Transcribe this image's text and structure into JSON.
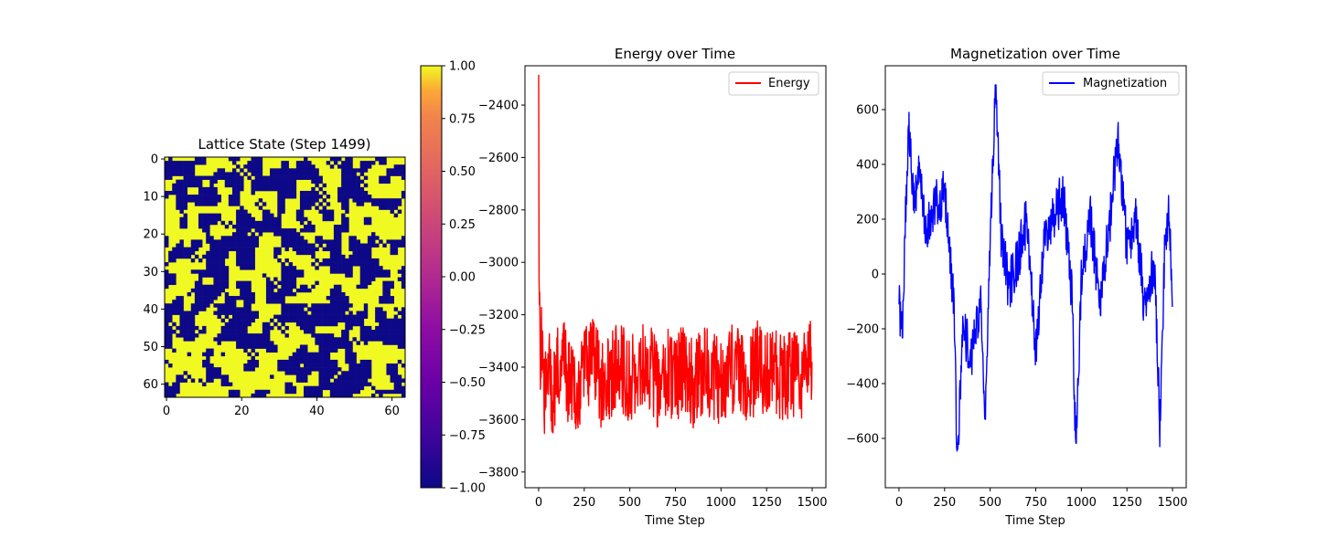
{
  "chart_data": [
    {
      "type": "heatmap",
      "title": "Lattice State (Step 1499)",
      "grid_size": 64,
      "seed": 1499,
      "xlim": [
        -0.5,
        63.5
      ],
      "ylim": [
        63.5,
        -0.5
      ],
      "xticks": [
        0,
        20,
        40,
        60
      ],
      "yticks": [
        0,
        10,
        20,
        30,
        40,
        50,
        60
      ],
      "values_domain": [
        -1,
        1
      ],
      "low_color": "#0d0887",
      "high_color": "#f0f921",
      "colorbar": {
        "colormap": "plasma",
        "ticks": [
          -1.0,
          -0.75,
          -0.5,
          -0.25,
          0.0,
          0.25,
          0.5,
          0.75,
          1.0
        ],
        "tick_labels": [
          "−1.00",
          "−0.75",
          "−0.50",
          "−0.25",
          "0.00",
          "0.25",
          "0.50",
          "0.75",
          "1.00"
        ]
      }
    },
    {
      "type": "line",
      "title": "Energy over Time",
      "xlabel": "Time Step",
      "ylabel": "",
      "xlim": [
        -75,
        1575
      ],
      "ylim": [
        -3860,
        -2250
      ],
      "xticks": [
        0,
        250,
        500,
        750,
        1000,
        1250,
        1500
      ],
      "yticks": [
        -3800,
        -3600,
        -3400,
        -3200,
        -3000,
        -2800,
        -2600,
        -2400
      ],
      "ytick_labels": [
        "−3800",
        "−3600",
        "−3400",
        "−3200",
        "−3000",
        "−2800",
        "−2600",
        "−2400"
      ],
      "legend_position": "upper right",
      "series": [
        {
          "name": "Energy",
          "color": "#ff0000",
          "x": [
            0,
            2,
            5,
            8,
            12,
            20,
            30,
            45,
            60,
            75,
            100,
            130,
            160,
            200,
            250,
            300,
            350,
            400,
            450,
            500,
            550,
            600,
            650,
            700,
            750,
            800,
            850,
            900,
            950,
            1000,
            1050,
            1100,
            1150,
            1200,
            1250,
            1300,
            1350,
            1400,
            1450,
            1499
          ],
          "values": [
            -2320,
            -3050,
            -3200,
            -3450,
            -3350,
            -3300,
            -3500,
            -3420,
            -3400,
            -3550,
            -3400,
            -3350,
            -3450,
            -3500,
            -3420,
            -3380,
            -3480,
            -3420,
            -3400,
            -3450,
            -3430,
            -3380,
            -3460,
            -3420,
            -3440,
            -3400,
            -3470,
            -3410,
            -3430,
            -3450,
            -3400,
            -3420,
            -3460,
            -3390,
            -3440,
            -3410,
            -3450,
            -3420,
            -3430,
            -3380
          ]
        }
      ]
    },
    {
      "type": "line",
      "title": "Magnetization over Time",
      "xlabel": "Time Step",
      "ylabel": "",
      "xlim": [
        -75,
        1575
      ],
      "ylim": [
        -780,
        760
      ],
      "xticks": [
        0,
        250,
        500,
        750,
        1000,
        1250,
        1500
      ],
      "yticks": [
        -600,
        -400,
        -200,
        0,
        200,
        400,
        600
      ],
      "ytick_labels": [
        "−600",
        "−400",
        "−200",
        "0",
        "200",
        "400",
        "600"
      ],
      "legend_position": "upper right",
      "series": [
        {
          "name": "Magnetization",
          "color": "#0000ff",
          "x": [
            0,
            20,
            40,
            55,
            80,
            110,
            150,
            200,
            250,
            300,
            320,
            350,
            400,
            450,
            470,
            500,
            530,
            560,
            600,
            650,
            700,
            750,
            800,
            850,
            900,
            950,
            970,
            1000,
            1050,
            1100,
            1150,
            1200,
            1250,
            1300,
            1350,
            1400,
            1430,
            1460,
            1480,
            1499
          ],
          "values": [
            -120,
            -200,
            300,
            560,
            250,
            350,
            150,
            250,
            300,
            -100,
            -700,
            -200,
            -300,
            -100,
            -560,
            100,
            680,
            150,
            -50,
            50,
            200,
            -300,
            150,
            200,
            300,
            -100,
            -660,
            0,
            200,
            -100,
            150,
            500,
            100,
            200,
            -150,
            50,
            -550,
            150,
            220,
            -120
          ]
        }
      ]
    }
  ]
}
